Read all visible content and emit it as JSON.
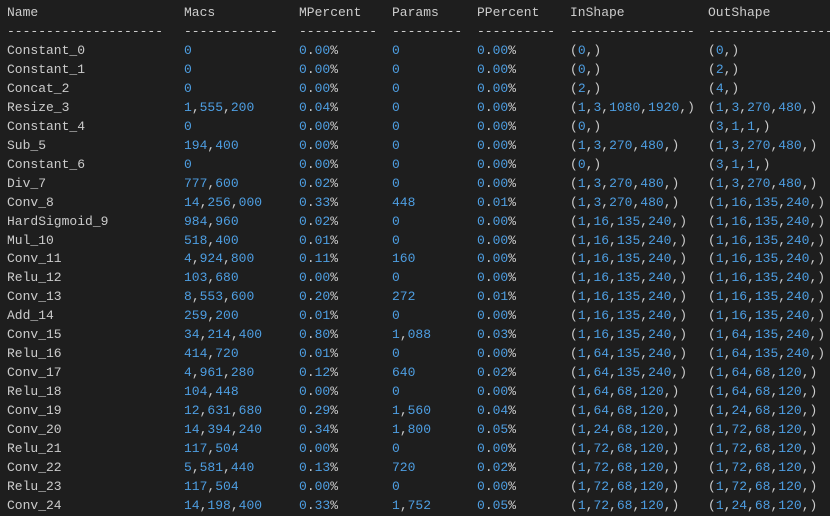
{
  "table": {
    "header": [
      "Name",
      "Macs",
      "MPercent",
      "Params",
      "PPercent",
      "InShape",
      "OutShape"
    ],
    "separator": [
      "--------------------",
      "------------",
      "----------",
      "---------",
      "----------",
      "----------------",
      "----------------"
    ],
    "rows": [
      [
        "Constant_0",
        "0",
        "0.00%",
        "0",
        "0.00%",
        "(0,)",
        "(0,)"
      ],
      [
        "Constant_1",
        "0",
        "0.00%",
        "0",
        "0.00%",
        "(0,)",
        "(2,)"
      ],
      [
        "Concat_2",
        "0",
        "0.00%",
        "0",
        "0.00%",
        "(2,)",
        "(4,)"
      ],
      [
        "Resize_3",
        "1,555,200",
        "0.04%",
        "0",
        "0.00%",
        "(1,3,1080,1920,)",
        "(1,3,270,480,)"
      ],
      [
        "Constant_4",
        "0",
        "0.00%",
        "0",
        "0.00%",
        "(0,)",
        "(3,1,1,)"
      ],
      [
        "Sub_5",
        "194,400",
        "0.00%",
        "0",
        "0.00%",
        "(1,3,270,480,)",
        "(1,3,270,480,)"
      ],
      [
        "Constant_6",
        "0",
        "0.00%",
        "0",
        "0.00%",
        "(0,)",
        "(3,1,1,)"
      ],
      [
        "Div_7",
        "777,600",
        "0.02%",
        "0",
        "0.00%",
        "(1,3,270,480,)",
        "(1,3,270,480,)"
      ],
      [
        "Conv_8",
        "14,256,000",
        "0.33%",
        "448",
        "0.01%",
        "(1,3,270,480,)",
        "(1,16,135,240,)"
      ],
      [
        "HardSigmoid_9",
        "984,960",
        "0.02%",
        "0",
        "0.00%",
        "(1,16,135,240,)",
        "(1,16,135,240,)"
      ],
      [
        "Mul_10",
        "518,400",
        "0.01%",
        "0",
        "0.00%",
        "(1,16,135,240,)",
        "(1,16,135,240,)"
      ],
      [
        "Conv_11",
        "4,924,800",
        "0.11%",
        "160",
        "0.00%",
        "(1,16,135,240,)",
        "(1,16,135,240,)"
      ],
      [
        "Relu_12",
        "103,680",
        "0.00%",
        "0",
        "0.00%",
        "(1,16,135,240,)",
        "(1,16,135,240,)"
      ],
      [
        "Conv_13",
        "8,553,600",
        "0.20%",
        "272",
        "0.01%",
        "(1,16,135,240,)",
        "(1,16,135,240,)"
      ],
      [
        "Add_14",
        "259,200",
        "0.01%",
        "0",
        "0.00%",
        "(1,16,135,240,)",
        "(1,16,135,240,)"
      ],
      [
        "Conv_15",
        "34,214,400",
        "0.80%",
        "1,088",
        "0.03%",
        "(1,16,135,240,)",
        "(1,64,135,240,)"
      ],
      [
        "Relu_16",
        "414,720",
        "0.01%",
        "0",
        "0.00%",
        "(1,64,135,240,)",
        "(1,64,135,240,)"
      ],
      [
        "Conv_17",
        "4,961,280",
        "0.12%",
        "640",
        "0.02%",
        "(1,64,135,240,)",
        "(1,64,68,120,)"
      ],
      [
        "Relu_18",
        "104,448",
        "0.00%",
        "0",
        "0.00%",
        "(1,64,68,120,)",
        "(1,64,68,120,)"
      ],
      [
        "Conv_19",
        "12,631,680",
        "0.29%",
        "1,560",
        "0.04%",
        "(1,64,68,120,)",
        "(1,24,68,120,)"
      ],
      [
        "Conv_20",
        "14,394,240",
        "0.34%",
        "1,800",
        "0.05%",
        "(1,24,68,120,)",
        "(1,72,68,120,)"
      ],
      [
        "Relu_21",
        "117,504",
        "0.00%",
        "0",
        "0.00%",
        "(1,72,68,120,)",
        "(1,72,68,120,)"
      ],
      [
        "Conv_22",
        "5,581,440",
        "0.13%",
        "720",
        "0.02%",
        "(1,72,68,120,)",
        "(1,72,68,120,)"
      ],
      [
        "Relu_23",
        "117,504",
        "0.00%",
        "0",
        "0.00%",
        "(1,72,68,120,)",
        "(1,72,68,120,)"
      ],
      [
        "Conv_24",
        "14,198,400",
        "0.33%",
        "1,752",
        "0.05%",
        "(1,72,68,120,)",
        "(1,24,68,120,)"
      ]
    ]
  }
}
